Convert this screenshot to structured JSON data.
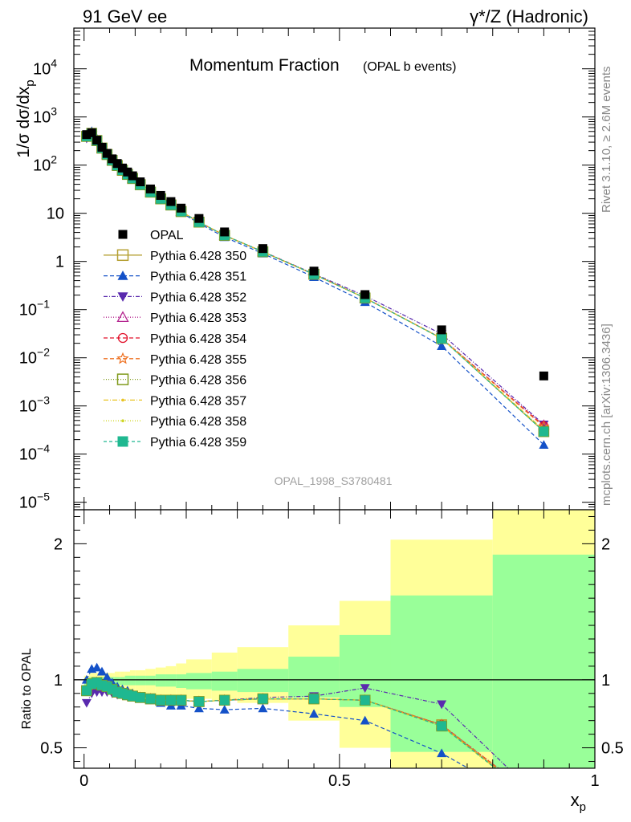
{
  "header": {
    "left": "91 GeV ee",
    "right": "γ*/Z (Hadronic)"
  },
  "side_labels": {
    "rivet": "Rivet 3.1.10, ≥ 2.6M events",
    "mcplots": "mcplots.cern.ch [arXiv:1306.3436]"
  },
  "chart_data": [
    {
      "type": "line",
      "title": "Momentum Fraction",
      "subtitle": "(OPAL b events)",
      "ylabel": "1/σ dσ/dx_p",
      "watermark": "OPAL_1998_S3780481",
      "yscale": "log",
      "xlim": [
        -0.02,
        1.0
      ],
      "ylim": [
        7e-06,
        70000
      ],
      "y_ticks": [
        {
          "v": 1e-05,
          "label": "10",
          "exp": "−5"
        },
        {
          "v": 0.0001,
          "label": "10",
          "exp": "−4"
        },
        {
          "v": 0.001,
          "label": "10",
          "exp": "−3"
        },
        {
          "v": 0.01,
          "label": "10",
          "exp": "−2"
        },
        {
          "v": 0.1,
          "label": "10",
          "exp": "−1"
        },
        {
          "v": 1,
          "label": "1",
          "exp": ""
        },
        {
          "v": 10,
          "label": "10",
          "exp": ""
        },
        {
          "v": 100,
          "label": "10",
          "exp": "2"
        },
        {
          "v": 1000,
          "label": "10",
          "exp": "3"
        },
        {
          "v": 10000,
          "label": "10",
          "exp": "4"
        }
      ],
      "x": [
        0.005,
        0.015,
        0.025,
        0.035,
        0.045,
        0.055,
        0.065,
        0.075,
        0.085,
        0.095,
        0.11,
        0.13,
        0.15,
        0.17,
        0.19,
        0.225,
        0.275,
        0.35,
        0.45,
        0.55,
        0.7,
        0.9
      ],
      "legend": [
        {
          "name": "OPAL",
          "color": "#000000",
          "marker": "square-filled",
          "dash": ""
        },
        {
          "name": "Pythia 6.428 350",
          "color": "#b5a033",
          "marker": "square-open",
          "dash": ""
        },
        {
          "name": "Pythia 6.428 351",
          "color": "#1451c8",
          "marker": "triangle-up-filled",
          "dash": "5,3"
        },
        {
          "name": "Pythia 6.428 352",
          "color": "#5a2aae",
          "marker": "triangle-down-filled",
          "dash": "5,2,1,2"
        },
        {
          "name": "Pythia 6.428 353",
          "color": "#b4258f",
          "marker": "triangle-up-open",
          "dash": "1,2"
        },
        {
          "name": "Pythia 6.428 354",
          "color": "#e2102a",
          "marker": "circle-open",
          "dash": "5,3"
        },
        {
          "name": "Pythia 6.428 355",
          "color": "#ee7020",
          "marker": "star-open",
          "dash": "5,3"
        },
        {
          "name": "Pythia 6.428 356",
          "color": "#809a1c",
          "marker": "square-open",
          "dash": "1,2"
        },
        {
          "name": "Pythia 6.428 357",
          "color": "#e9c424",
          "marker": "dot",
          "dash": "6,2,1,2"
        },
        {
          "name": "Pythia 6.428 358",
          "color": "#cfd624",
          "marker": "dot",
          "dash": "1,2"
        },
        {
          "name": "Pythia 6.428 359",
          "color": "#1fb890",
          "marker": "square-filled",
          "dash": "4,3"
        }
      ],
      "data_values": [
        430,
        470,
        330,
        235,
        175,
        135,
        108,
        87,
        72,
        60,
        45,
        32,
        23.5,
        17.5,
        12.8,
        7.8,
        4.1,
        1.85,
        0.63,
        0.205,
        0.038,
        0.0042
      ],
      "mc_ratios": [
        [
          0.92,
          0.97,
          0.98,
          0.96,
          0.95,
          0.93,
          0.91,
          0.9,
          0.89,
          0.88,
          0.87,
          0.86,
          0.85,
          0.85,
          0.85,
          0.84,
          0.85,
          0.86,
          0.86,
          0.85,
          0.67,
          0.07
        ],
        [
          1.0,
          1.08,
          1.09,
          1.06,
          1.02,
          0.98,
          0.95,
          0.93,
          0.92,
          0.9,
          0.87,
          0.85,
          0.83,
          0.81,
          0.81,
          0.79,
          0.78,
          0.79,
          0.75,
          0.7,
          0.46,
          0.037
        ],
        [
          0.83,
          0.9,
          0.91,
          0.91,
          0.91,
          0.9,
          0.89,
          0.89,
          0.88,
          0.88,
          0.87,
          0.86,
          0.85,
          0.85,
          0.85,
          0.84,
          0.85,
          0.87,
          0.88,
          0.94,
          0.82,
          0.098
        ],
        [
          0.92,
          0.97,
          0.98,
          0.96,
          0.95,
          0.93,
          0.91,
          0.9,
          0.89,
          0.88,
          0.87,
          0.86,
          0.85,
          0.85,
          0.85,
          0.84,
          0.85,
          0.86,
          0.86,
          0.85,
          0.67,
          0.095
        ],
        [
          0.92,
          0.97,
          0.98,
          0.96,
          0.95,
          0.93,
          0.91,
          0.9,
          0.89,
          0.88,
          0.87,
          0.86,
          0.85,
          0.85,
          0.85,
          0.84,
          0.85,
          0.86,
          0.86,
          0.85,
          0.67,
          0.092
        ],
        [
          0.92,
          0.97,
          0.98,
          0.96,
          0.95,
          0.93,
          0.91,
          0.9,
          0.89,
          0.88,
          0.87,
          0.86,
          0.85,
          0.85,
          0.85,
          0.84,
          0.85,
          0.86,
          0.86,
          0.85,
          0.67,
          0.088
        ],
        [
          0.92,
          0.97,
          0.98,
          0.96,
          0.95,
          0.93,
          0.91,
          0.9,
          0.89,
          0.88,
          0.87,
          0.86,
          0.85,
          0.85,
          0.85,
          0.84,
          0.85,
          0.86,
          0.86,
          0.85,
          0.66,
          0.07
        ],
        [
          0.92,
          0.97,
          0.98,
          0.96,
          0.95,
          0.93,
          0.91,
          0.9,
          0.89,
          0.88,
          0.87,
          0.86,
          0.85,
          0.85,
          0.85,
          0.84,
          0.85,
          0.86,
          0.86,
          0.85,
          0.66,
          0.075
        ],
        [
          0.92,
          0.97,
          0.98,
          0.96,
          0.95,
          0.93,
          0.91,
          0.9,
          0.89,
          0.88,
          0.87,
          0.86,
          0.85,
          0.85,
          0.85,
          0.84,
          0.85,
          0.86,
          0.86,
          0.85,
          0.66,
          0.072
        ],
        [
          0.92,
          0.97,
          0.98,
          0.96,
          0.95,
          0.93,
          0.91,
          0.9,
          0.89,
          0.88,
          0.87,
          0.86,
          0.85,
          0.85,
          0.85,
          0.84,
          0.85,
          0.86,
          0.86,
          0.85,
          0.66,
          0.07
        ]
      ]
    },
    {
      "type": "line",
      "ylabel": "Ratio to OPAL",
      "xlabel": "x_p",
      "xlim": [
        -0.02,
        1.0
      ],
      "ylim": [
        0.35,
        2.25
      ],
      "y_ticks": [
        0.5,
        1,
        2
      ],
      "x_ticks": [
        0,
        0.5,
        1
      ],
      "x_tick_labels": [
        "0",
        "0.5",
        "1"
      ],
      "reference_line": 1.0,
      "bands": {
        "edges": [
          0.0,
          0.01,
          0.02,
          0.03,
          0.04,
          0.05,
          0.06,
          0.07,
          0.08,
          0.09,
          0.1,
          0.12,
          0.14,
          0.16,
          0.18,
          0.2,
          0.25,
          0.3,
          0.4,
          0.5,
          0.6,
          0.8,
          1.0
        ],
        "inner_color": "#99ff99",
        "outer_color": "#ffff99",
        "inner_down": [
          0.95,
          0.96,
          0.96,
          0.96,
          0.96,
          0.96,
          0.96,
          0.96,
          0.96,
          0.96,
          0.96,
          0.96,
          0.95,
          0.95,
          0.94,
          0.93,
          0.92,
          0.91,
          0.87,
          0.8,
          0.47,
          0.35
        ],
        "inner_up": [
          1.01,
          1.02,
          1.02,
          1.02,
          1.02,
          1.02,
          1.02,
          1.02,
          1.03,
          1.03,
          1.03,
          1.03,
          1.04,
          1.04,
          1.04,
          1.05,
          1.06,
          1.08,
          1.17,
          1.33,
          1.62,
          1.92
        ],
        "outer_down": [
          0.93,
          0.93,
          0.92,
          0.92,
          0.92,
          0.92,
          0.92,
          0.91,
          0.91,
          0.91,
          0.91,
          0.9,
          0.89,
          0.88,
          0.87,
          0.86,
          0.85,
          0.83,
          0.7,
          0.5,
          0.35,
          0.35
        ],
        "outer_up": [
          1.03,
          1.05,
          1.05,
          1.05,
          1.05,
          1.05,
          1.06,
          1.06,
          1.06,
          1.07,
          1.07,
          1.08,
          1.09,
          1.1,
          1.12,
          1.15,
          1.2,
          1.24,
          1.4,
          1.58,
          2.03,
          2.32
        ]
      }
    }
  ]
}
